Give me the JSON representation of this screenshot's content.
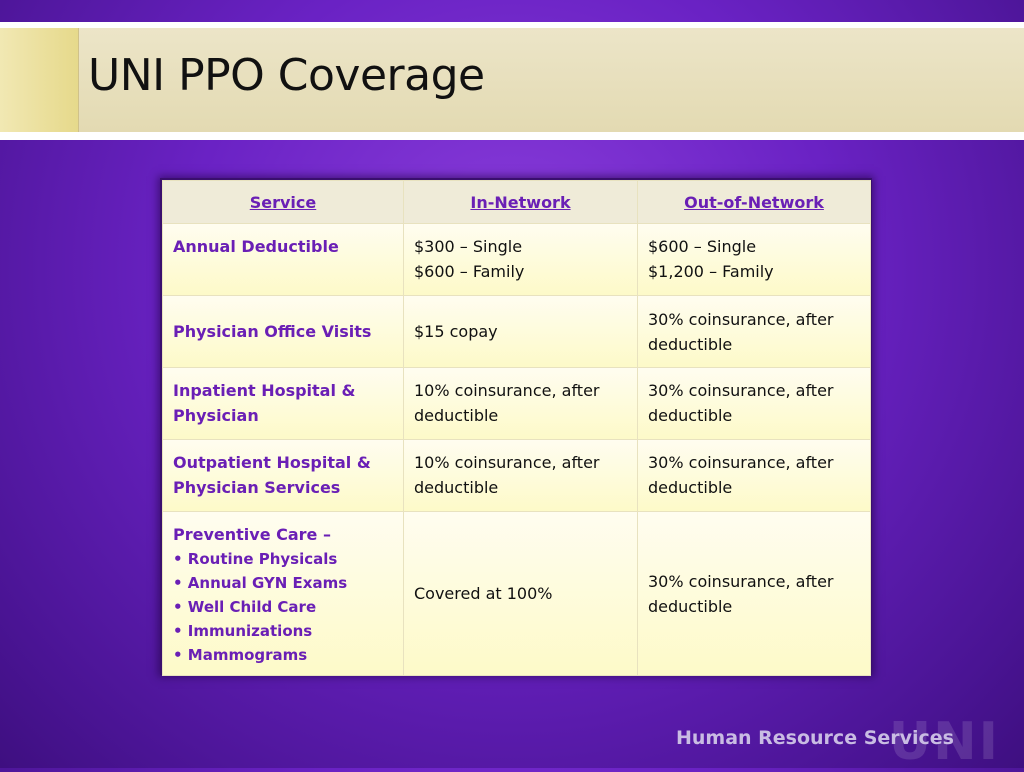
{
  "slide": {
    "title": "UNI PPO Coverage",
    "footer_text": "Human Resource Services",
    "footer_logo": "UNI"
  },
  "table": {
    "headers": [
      "Service",
      "In-Network",
      "Out-of-Network"
    ],
    "rows": [
      {
        "service": "Annual Deductible",
        "in_network": [
          "$300 – Single",
          "$600  – Family"
        ],
        "out_network": [
          "$600 – Single",
          "$1,200 – Family"
        ]
      },
      {
        "service": "Physician Office Visits",
        "in_network": [
          "$15 copay"
        ],
        "out_network": [
          "30% coinsurance, after deductible"
        ]
      },
      {
        "service": "Inpatient Hospital & Physician",
        "in_network": [
          "10% coinsurance, after deductible"
        ],
        "out_network": [
          "30% coinsurance, after deductible"
        ]
      },
      {
        "service": "Outpatient Hospital & Physician Services",
        "in_network": [
          "10% coinsurance, after deductible"
        ],
        "out_network": [
          "30% coinsurance, after deductible"
        ]
      },
      {
        "service": "Preventive Care –",
        "service_items": [
          "• Routine Physicals",
          "• Annual GYN Exams",
          "• Well Child Care",
          "• Immunizations",
          "• Mammograms"
        ],
        "in_network": [
          "Covered at 100%"
        ],
        "out_network": [
          "30% coinsurance, after deductible"
        ]
      }
    ]
  },
  "colors": {
    "accent_purple": "#6a1fb5",
    "background_purple": "#6a22c4",
    "title_bar": "#e3dab2"
  }
}
